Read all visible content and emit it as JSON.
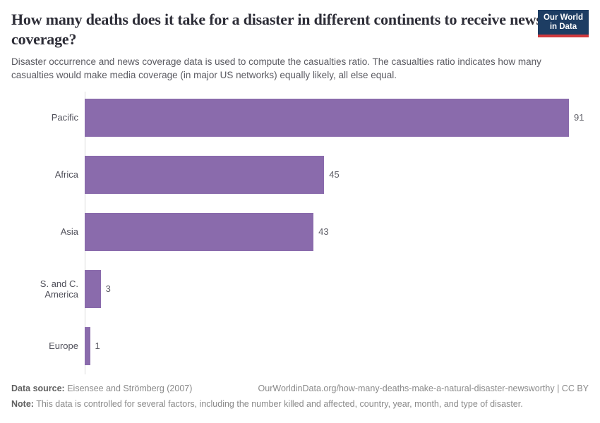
{
  "header": {
    "title": "How many deaths does it take for a disaster in different continents to receive news coverage?",
    "subtitle": "Disaster occurrence and news coverage data is used to compute the casualties ratio. The casualties ratio indicates how many casualties would make media coverage (in major US networks) equally likely, all else equal.",
    "logo": {
      "line1": "Our World",
      "line2": "in Data"
    }
  },
  "chart_data": {
    "type": "bar",
    "orientation": "horizontal",
    "title": "How many deaths does it take for a disaster in different continents to receive news coverage?",
    "categories": [
      "Pacific",
      "Africa",
      "Asia",
      "S. and C. America",
      "Europe"
    ],
    "values": [
      91,
      45,
      43,
      3,
      1
    ],
    "value_labels": [
      "91",
      "45",
      "43",
      "3",
      "1"
    ],
    "xlabel": "",
    "ylabel": "",
    "xlim": [
      0,
      91
    ],
    "grid": false,
    "legend": false,
    "bar_color": "#8a6bac",
    "axis_line_color": "#dadada"
  },
  "footer": {
    "source_label": "Data source:",
    "source_text": " Eisensee and Strömberg (2007)",
    "url_text": "OurWorldinData.org/how-many-deaths-make-a-natural-disaster-newsworthy | CC BY",
    "note_label": "Note:",
    "note_text": " This data is controlled for several factors, including the number killed and affected, country, year, month, and type of disaster."
  },
  "colors": {
    "bar": "#8a6bac",
    "logo_bg": "#1d3d63",
    "logo_accent": "#d0393d",
    "title_text": "#2d2d37"
  }
}
